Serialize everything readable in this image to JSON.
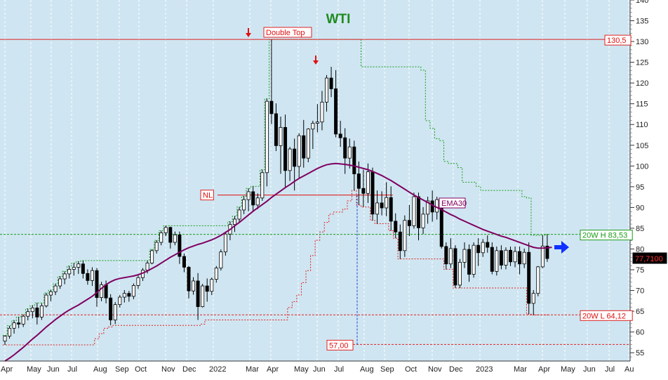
{
  "chart_data": {
    "type": "candlestick",
    "title": "WTI",
    "title_color": "#1f8a1f",
    "background": "#cfe6f2",
    "ylim": [
      53,
      140
    ],
    "y_ticks": [
      55,
      60,
      65,
      70,
      75,
      80,
      85,
      90,
      95,
      100,
      105,
      110,
      115,
      120,
      125,
      130,
      135,
      140
    ],
    "x_ticks": [
      "Apr",
      "May",
      "Jun",
      "Jul",
      "Aug",
      "Sep",
      "Oct",
      "Nov",
      "Dec",
      "2022",
      "Mar",
      "Apr",
      "May",
      "Jun",
      "Jul",
      "Aug",
      "Sep",
      "Oct",
      "Nov",
      "Dec",
      "2023",
      "Mar",
      "Apr",
      "May",
      "Jun",
      "Jul",
      "Au"
    ],
    "grid": "vertical dashed at month starts",
    "candles": [
      [
        57.8,
        59.2,
        56.9,
        59.0
      ],
      [
        59.0,
        61.5,
        58.4,
        60.9
      ],
      [
        60.9,
        62.8,
        59.6,
        62.2
      ],
      [
        62.2,
        63.6,
        60.9,
        61.9
      ],
      [
        61.9,
        64.2,
        61.2,
        63.8
      ],
      [
        63.8,
        65.6,
        62.8,
        64.9
      ],
      [
        64.9,
        66.4,
        63.3,
        65.8
      ],
      [
        65.8,
        67.0,
        61.8,
        63.6
      ],
      [
        63.6,
        66.9,
        62.9,
        66.3
      ],
      [
        66.3,
        69.4,
        65.9,
        68.9
      ],
      [
        68.9,
        70.1,
        67.4,
        69.7
      ],
      [
        69.7,
        71.6,
        68.9,
        71.1
      ],
      [
        71.1,
        73.4,
        70.4,
        72.8
      ],
      [
        72.8,
        74.6,
        71.5,
        74.0
      ],
      [
        74.0,
        75.9,
        72.9,
        75.1
      ],
      [
        75.1,
        76.6,
        73.6,
        75.6
      ],
      [
        75.6,
        77.0,
        74.0,
        76.4
      ],
      [
        76.4,
        77.2,
        72.9,
        74.1
      ],
      [
        74.1,
        75.1,
        71.4,
        72.4
      ],
      [
        72.4,
        75.6,
        71.1,
        74.8
      ],
      [
        74.8,
        75.4,
        66.1,
        68.3
      ],
      [
        68.3,
        72.1,
        67.4,
        71.4
      ],
      [
        71.4,
        72.4,
        66.9,
        68.2
      ],
      [
        68.2,
        69.1,
        61.6,
        62.9
      ],
      [
        62.9,
        67.2,
        61.9,
        66.6
      ],
      [
        66.6,
        68.9,
        65.9,
        68.4
      ],
      [
        68.4,
        70.1,
        67.1,
        69.3
      ],
      [
        69.3,
        69.9,
        67.3,
        68.6
      ],
      [
        68.6,
        71.7,
        67.9,
        71.2
      ],
      [
        71.2,
        73.6,
        70.4,
        73.1
      ],
      [
        73.1,
        75.4,
        72.3,
        74.9
      ],
      [
        74.9,
        77.2,
        74.1,
        76.6
      ],
      [
        76.6,
        79.9,
        76.3,
        79.6
      ],
      [
        79.6,
        82.1,
        78.9,
        81.6
      ],
      [
        81.6,
        84.4,
        80.9,
        83.9
      ],
      [
        83.9,
        85.6,
        83.1,
        85.2
      ],
      [
        85.2,
        85.4,
        80.1,
        81.6
      ],
      [
        81.6,
        84.2,
        80.9,
        83.4
      ],
      [
        83.4,
        84.2,
        76.4,
        78.2
      ],
      [
        78.2,
        78.9,
        74.4,
        75.6
      ],
      [
        75.6,
        75.9,
        68.1,
        69.9
      ],
      [
        69.9,
        73.2,
        69.0,
        72.3
      ],
      [
        72.3,
        74.2,
        62.9,
        66.1
      ],
      [
        66.1,
        71.6,
        65.9,
        71.1
      ],
      [
        71.1,
        72.9,
        67.3,
        69.8
      ],
      [
        69.8,
        73.1,
        68.9,
        72.7
      ],
      [
        72.7,
        75.9,
        71.9,
        75.4
      ],
      [
        75.4,
        79.9,
        74.8,
        79.3
      ],
      [
        79.3,
        84.2,
        78.4,
        83.6
      ],
      [
        83.6,
        86.6,
        82.1,
        85.9
      ],
      [
        85.9,
        87.9,
        84.1,
        87.2
      ],
      [
        87.2,
        90.1,
        86.4,
        89.4
      ],
      [
        89.4,
        92.7,
        88.4,
        91.9
      ],
      [
        91.9,
        94.6,
        89.1,
        93.8
      ],
      [
        93.8,
        95.1,
        88.9,
        90.6
      ],
      [
        90.6,
        93.4,
        89.6,
        92.3
      ],
      [
        92.3,
        99.1,
        91.6,
        98.4
      ],
      [
        98.4,
        116.2,
        95.1,
        115.6
      ],
      [
        115.6,
        130.5,
        110.1,
        112.6
      ],
      [
        112.6,
        115.1,
        103.6,
        104.9
      ],
      [
        104.9,
        111.9,
        98.1,
        109.3
      ],
      [
        109.3,
        112.4,
        94.6,
        98.9
      ],
      [
        98.9,
        104.6,
        96.4,
        104.1
      ],
      [
        104.1,
        106.6,
        94.1,
        99.9
      ],
      [
        99.9,
        107.9,
        97.1,
        107.3
      ],
      [
        107.3,
        111.1,
        99.6,
        101.9
      ],
      [
        101.9,
        109.1,
        100.9,
        108.9
      ],
      [
        108.9,
        110.9,
        104.1,
        110.3
      ],
      [
        110.3,
        114.9,
        108.1,
        110.6
      ],
      [
        110.6,
        118.1,
        108.6,
        115.4
      ],
      [
        115.4,
        121.9,
        113.1,
        121.2
      ],
      [
        121.2,
        123.9,
        116.6,
        118.6
      ],
      [
        118.6,
        123.1,
        106.9,
        107.7
      ],
      [
        107.7,
        110.9,
        104.6,
        106.8
      ],
      [
        106.8,
        109.1,
        98.1,
        101.9
      ],
      [
        101.9,
        106.6,
        99.4,
        104.6
      ],
      [
        104.6,
        106.1,
        94.1,
        98.1
      ],
      [
        98.1,
        101.1,
        90.6,
        94.6
      ],
      [
        94.6,
        99.1,
        90.1,
        93.4
      ],
      [
        93.4,
        100.6,
        91.1,
        98.6
      ],
      [
        98.6,
        99.6,
        86.9,
        88.4
      ],
      [
        88.4,
        94.1,
        86.1,
        91.1
      ],
      [
        91.1,
        93.9,
        88.1,
        89.9
      ],
      [
        89.9,
        96.1,
        87.9,
        92.4
      ],
      [
        92.4,
        95.1,
        84.4,
        86.7
      ],
      [
        86.7,
        88.6,
        82.6,
        84.1
      ],
      [
        84.1,
        85.9,
        77.6,
        79.6
      ],
      [
        79.6,
        88.1,
        78.1,
        86.9
      ],
      [
        86.9,
        90.6,
        83.1,
        85.6
      ],
      [
        85.6,
        93.6,
        84.9,
        92.6
      ],
      [
        92.6,
        93.6,
        82.1,
        85.1
      ],
      [
        85.1,
        90.1,
        83.6,
        88.4
      ],
      [
        88.4,
        92.6,
        86.1,
        91.6
      ],
      [
        91.6,
        94.1,
        86.6,
        88.9
      ],
      [
        88.9,
        92.6,
        87.1,
        91.9
      ],
      [
        91.9,
        92.3,
        80.1,
        80.6
      ],
      [
        80.6,
        81.6,
        75.1,
        76.4
      ],
      [
        76.4,
        82.6,
        75.4,
        80.1
      ],
      [
        80.1,
        80.9,
        70.6,
        71.3
      ],
      [
        71.3,
        77.6,
        70.6,
        76.8
      ],
      [
        76.8,
        81.6,
        75.4,
        79.9
      ],
      [
        79.9,
        81.1,
        72.1,
        73.9
      ],
      [
        73.9,
        81.6,
        73.1,
        80.9
      ],
      [
        80.9,
        82.6,
        75.9,
        79.1
      ],
      [
        79.1,
        82.4,
        78.1,
        81.6
      ],
      [
        81.6,
        83.3,
        79.1,
        80.4
      ],
      [
        80.4,
        81.6,
        73.9,
        74.6
      ],
      [
        74.6,
        80.6,
        73.6,
        79.6
      ],
      [
        79.6,
        80.9,
        75.1,
        76.1
      ],
      [
        76.1,
        80.4,
        75.1,
        79.7
      ],
      [
        79.7,
        80.6,
        75.9,
        76.9
      ],
      [
        76.9,
        80.6,
        75.6,
        79.4
      ],
      [
        79.4,
        80.6,
        73.9,
        76.4
      ],
      [
        76.4,
        80.1,
        75.4,
        79.2
      ],
      [
        79.2,
        81.6,
        64.3,
        66.9
      ],
      [
        66.9,
        70.1,
        64.1,
        69.3
      ],
      [
        69.3,
        75.9,
        68.6,
        75.7
      ],
      [
        75.7,
        83.3,
        75.4,
        80.7
      ],
      [
        80.7,
        83.5,
        76.9,
        77.7
      ]
    ],
    "ema30": [
      53.0,
      53.7,
      54.5,
      55.4,
      56.3,
      57.3,
      58.3,
      59.2,
      60.2,
      61.2,
      62.1,
      63.0,
      63.8,
      64.6,
      65.3,
      65.9,
      66.5,
      67.2,
      67.9,
      68.6,
      69.5,
      70.5,
      71.4,
      72.1,
      72.6,
      72.9,
      73.1,
      73.3,
      73.5,
      73.8,
      74.2,
      74.7,
      75.3,
      75.9,
      76.6,
      77.3,
      78.0,
      78.6,
      79.2,
      79.8,
      80.3,
      80.7,
      81.1,
      81.4,
      81.8,
      82.2,
      82.7,
      83.3,
      84.0,
      84.7,
      85.6,
      86.4,
      87.3,
      88.2,
      89.1,
      89.9,
      90.7,
      91.5,
      92.4,
      93.2,
      94.0,
      94.8,
      95.5,
      96.3,
      97.0,
      97.6,
      98.2,
      98.8,
      99.4,
      99.9,
      100.3,
      100.5,
      100.6,
      100.5,
      100.4,
      100.2,
      100.0,
      99.7,
      99.4,
      99.1,
      98.7,
      98.2,
      97.7,
      97.1,
      96.5,
      95.8,
      95.1,
      94.4,
      93.7,
      93.0,
      92.4,
      91.8,
      91.2,
      90.6,
      90.0,
      89.5,
      88.9,
      88.3,
      87.8,
      87.2,
      86.7,
      86.2,
      85.7,
      85.2,
      84.7,
      84.3,
      83.9,
      83.5,
      83.1,
      82.8,
      82.4,
      82.0,
      81.6,
      81.2,
      80.8,
      80.4,
      80.2,
      80.2,
      80.3,
      80.4
    ],
    "labels": {
      "double_top": "Double Top",
      "nl": "NL",
      "ema": "EMA30",
      "level_high": "130,5",
      "hi20": "20W H 83,53",
      "lo20": "20W L 64,12",
      "target": "57,00",
      "last_price": "77,7100"
    },
    "levels": {
      "double_top": 130.5,
      "neckline": 93.0,
      "hi20": 83.53,
      "lo20": 64.12,
      "target": 57.0,
      "last_price": 77.71
    },
    "colors": {
      "candle_up": "#ffffff",
      "candle_down": "#000000",
      "ema": "#800060",
      "resistance": "#e02020",
      "support_green": "#1a9a1a",
      "target": "#2040d0",
      "arrow_red": "#e01010",
      "arrow_blue": "#1030ff"
    }
  }
}
